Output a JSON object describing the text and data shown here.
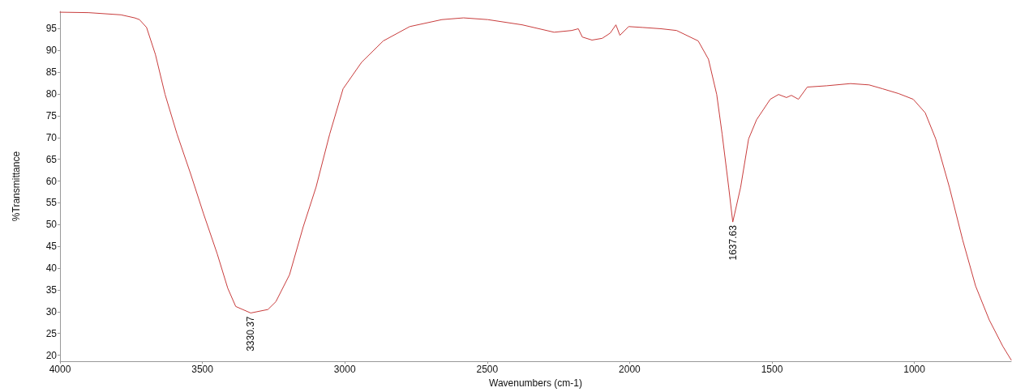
{
  "chart_data": {
    "type": "line",
    "xlabel": "Wavenumbers (cm-1)",
    "ylabel": "%Transmittance",
    "x": [
      4000,
      3900,
      3786,
      3738,
      3721,
      3696,
      3665,
      3631,
      3589,
      3541,
      3496,
      3448,
      3411,
      3383,
      3330.37,
      3270,
      3242,
      3194,
      3146,
      3101,
      3053,
      3006,
      2941,
      2865,
      2772,
      2659,
      2583,
      2498,
      2377,
      2265,
      2203,
      2180,
      2166,
      2132,
      2096,
      2068,
      2048,
      2034,
      2003,
      1955,
      1890,
      1835,
      1759,
      1723,
      1694,
      1675,
      1652,
      1637.63,
      1610,
      1582,
      1554,
      1506,
      1477,
      1449,
      1432,
      1407,
      1376,
      1308,
      1224,
      1159,
      1111,
      1055,
      1004,
      962,
      925,
      877,
      830,
      785,
      737,
      689,
      660
    ],
    "series": [
      {
        "color": "#c83c3c",
        "values": [
          98.8,
          98.7,
          98.2,
          97.5,
          97.1,
          95.3,
          89.1,
          79.9,
          70.8,
          61.6,
          52.5,
          43.3,
          35.4,
          31.2,
          29.7,
          30.5,
          32.3,
          38.5,
          49.5,
          58.6,
          70.8,
          81.2,
          87.3,
          92.2,
          95.5,
          97.1,
          97.5,
          97.1,
          95.9,
          94.2,
          94.6,
          95.0,
          93.1,
          92.4,
          92.8,
          94.0,
          95.9,
          93.5,
          95.5,
          95.3,
          95.0,
          94.6,
          92.2,
          88.0,
          79.9,
          70.8,
          58.6,
          50.6,
          58.6,
          69.7,
          74.1,
          78.8,
          79.9,
          79.2,
          79.7,
          78.8,
          81.6,
          81.9,
          82.4,
          82.1,
          81.2,
          80.1,
          78.8,
          75.7,
          69.7,
          58.6,
          46.4,
          35.9,
          28.1,
          22.0,
          18.9
        ]
      }
    ],
    "xlim": [
      4000,
      660
    ],
    "xticks": [
      4000,
      3500,
      3000,
      2500,
      2000,
      1500,
      1000
    ],
    "ylim": [
      18.6,
      99
    ],
    "yticks": [
      20,
      25,
      30,
      35,
      40,
      45,
      50,
      55,
      60,
      65,
      70,
      75,
      80,
      85,
      90,
      95
    ],
    "grid": false,
    "marker": "none",
    "line_style": "solid",
    "annotations": [
      {
        "text": "3330.37",
        "x": 3330.37,
        "y": 29.7
      },
      {
        "text": "1637.63",
        "x": 1637.63,
        "y": 50.6
      }
    ]
  }
}
